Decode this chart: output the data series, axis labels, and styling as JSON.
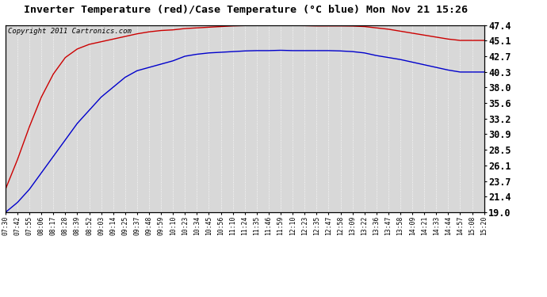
{
  "title": "Inverter Temperature (red)/Case Temperature (°C blue) Mon Nov 21 15:26",
  "copyright_text": "Copyright 2011 Cartronics.com",
  "y_ticks": [
    19.0,
    21.4,
    23.7,
    26.1,
    28.5,
    30.9,
    33.2,
    35.6,
    38.0,
    40.3,
    42.7,
    45.1,
    47.4
  ],
  "y_min": 19.0,
  "y_max": 47.4,
  "background_color": "#ffffff",
  "plot_bg_color": "#d8d8d8",
  "grid_color": "#ffffff",
  "line_color_red": "#cc0000",
  "line_color_blue": "#0000cc",
  "x_labels": [
    "07:30",
    "07:42",
    "07:55",
    "08:06",
    "08:17",
    "08:28",
    "08:39",
    "08:52",
    "09:03",
    "09:14",
    "09:25",
    "09:37",
    "09:48",
    "09:59",
    "10:10",
    "10:23",
    "10:34",
    "10:45",
    "10:56",
    "11:10",
    "11:24",
    "11:35",
    "11:46",
    "11:59",
    "12:10",
    "12:23",
    "12:35",
    "12:47",
    "12:58",
    "13:09",
    "13:22",
    "13:36",
    "13:47",
    "13:58",
    "14:09",
    "14:21",
    "14:33",
    "14:44",
    "14:57",
    "15:08",
    "15:20"
  ],
  "red_values": [
    22.5,
    27.0,
    32.0,
    36.5,
    40.0,
    42.5,
    43.8,
    44.5,
    44.9,
    45.3,
    45.7,
    46.1,
    46.4,
    46.6,
    46.7,
    46.9,
    47.0,
    47.1,
    47.2,
    47.3,
    47.35,
    47.38,
    47.38,
    47.38,
    47.36,
    47.34,
    47.3,
    47.3,
    47.3,
    47.28,
    47.2,
    47.0,
    46.8,
    46.5,
    46.2,
    45.9,
    45.6,
    45.3,
    45.1,
    45.1,
    45.1
  ],
  "blue_values": [
    19.0,
    20.5,
    22.5,
    25.0,
    27.5,
    30.0,
    32.5,
    34.5,
    36.5,
    38.0,
    39.5,
    40.5,
    41.0,
    41.5,
    42.0,
    42.7,
    43.0,
    43.2,
    43.3,
    43.4,
    43.5,
    43.55,
    43.55,
    43.6,
    43.55,
    43.55,
    43.55,
    43.55,
    43.5,
    43.4,
    43.2,
    42.8,
    42.5,
    42.2,
    41.8,
    41.4,
    41.0,
    40.6,
    40.3,
    40.3,
    40.3
  ],
  "title_fontsize": 9.5,
  "copyright_fontsize": 6.5,
  "ytick_fontsize": 8.5,
  "xtick_fontsize": 5.8
}
